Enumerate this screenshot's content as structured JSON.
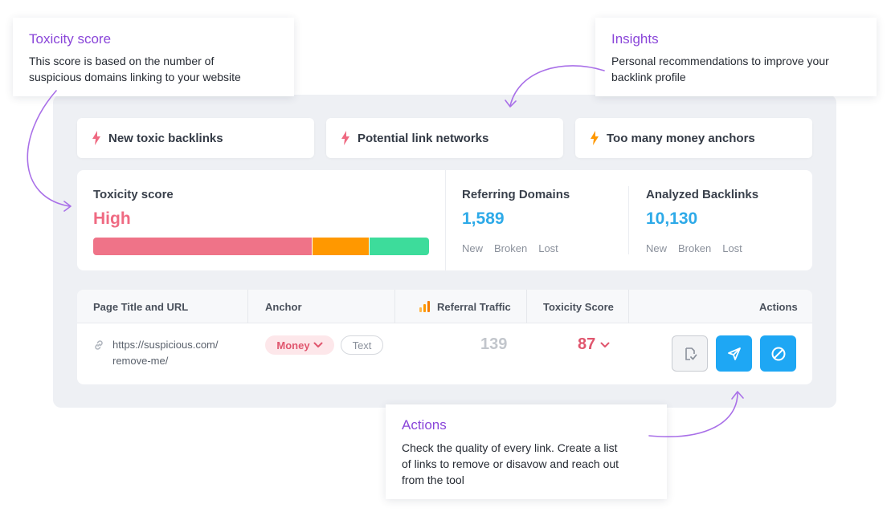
{
  "alerts": [
    {
      "label": "New toxic backlinks",
      "color": "#ef6a82"
    },
    {
      "label": "Potential link networks",
      "color": "#ef6a82"
    },
    {
      "label": "Too many money anchors",
      "color": "#ff9800"
    }
  ],
  "toxicity": {
    "label": "Toxicity score",
    "value": "High",
    "value_color": "#ef6a82",
    "bar": [
      {
        "share": 0.65,
        "color": "#ef7388"
      },
      {
        "share": 0.17,
        "color": "#ff9800"
      },
      {
        "share": 0.18,
        "color": "#3ddc9b"
      }
    ]
  },
  "referring_domains": {
    "label": "Referring Domains",
    "value": "1,589",
    "sub": [
      "New",
      "Broken",
      "Lost"
    ]
  },
  "analyzed_backlinks": {
    "label": "Analyzed Backlinks",
    "value": "10,130",
    "sub": [
      "New",
      "Broken",
      "Lost"
    ]
  },
  "table": {
    "headers": {
      "page": "Page Title and URL",
      "anchor": "Anchor",
      "traffic": "Referral Traffic",
      "toxicity": "Toxicity Score",
      "actions": "Actions"
    },
    "row": {
      "url_line1": "https://suspicious.com/",
      "url_line2": "remove-me/",
      "anchor_tag": "Money",
      "anchor_type": "Text",
      "traffic": "139",
      "toxicity": "87"
    }
  },
  "tooltips": {
    "toxicity": {
      "title": "Toxicity score",
      "line1": "This score is based on the number of",
      "line2": "suspicious domains linking to your website"
    },
    "insights": {
      "title": "Insights",
      "line1": "Personal recommendations to improve your",
      "line2": "backlink profile"
    },
    "actions": {
      "title": "Actions",
      "line1": "Check the quality of every link. Create a list",
      "line2": "of links to remove or disavow and reach out",
      "line3": "from the tool"
    }
  },
  "colors": {
    "accent_purple": "#8a46d9",
    "blue_value": "#2eaae8",
    "action_blue": "#1ea7f4"
  },
  "icons": {
    "alert": "bolt-icon",
    "url": "link-icon",
    "traffic": "analytics-icon",
    "actions": [
      "review-icon",
      "send-icon",
      "disavow-icon"
    ]
  }
}
